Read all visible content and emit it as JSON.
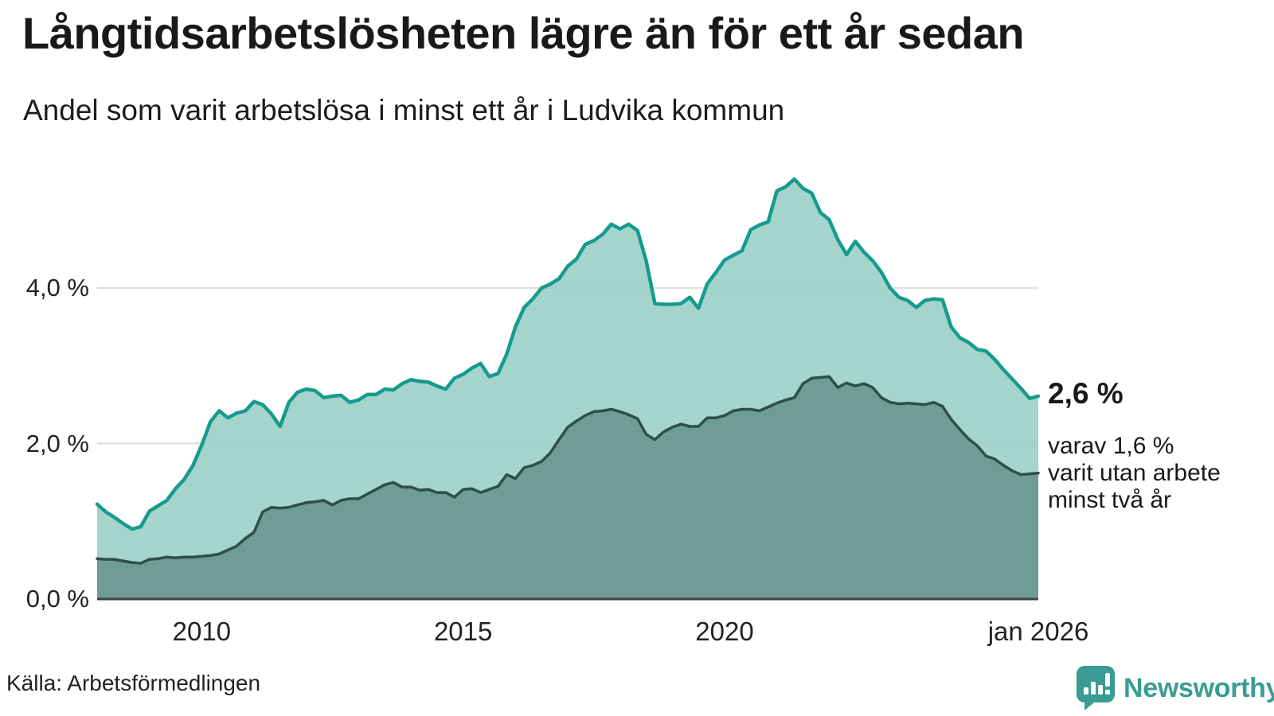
{
  "title": "Långtidsarbetslösheten lägre än för ett år sedan",
  "subtitle": "Andel som varit arbetslösa i minst ett år i Ludvika kommun",
  "annotation": {
    "value_label": "2,6 %",
    "detail_lines": [
      "varav 1,6 %",
      "varit utan arbete",
      "minst två år"
    ]
  },
  "source": {
    "text": "Källa: Arbetsförmedlingen"
  },
  "logo": {
    "text": "Newsworthy",
    "color": "#3A9C94"
  },
  "colors": {
    "series1_line": "#169B8D",
    "series1_fill": "#95CCC4",
    "series2_line": "#2E4F49",
    "series2_fill": "#6F9C95",
    "gridline": "#E0E0E0",
    "axis_line": "#3D4543",
    "text": "#191919"
  },
  "chart_data": {
    "type": "area",
    "title": "Långtidsarbetslösheten lägre än för ett år sedan",
    "subtitle": "Andel som varit arbetslösa i minst ett år i Ludvika kommun",
    "unit": "%",
    "x_start_year": 2008.0,
    "x_end_year": 2026.0,
    "point_interval_months": 2,
    "ylim": [
      0,
      5.6
    ],
    "grid_values": [
      2.0,
      4.0
    ],
    "y_ticks": [
      {
        "label": "4,0 %",
        "value": 4.0
      },
      {
        "label": "2,0 %",
        "value": 2.0
      },
      {
        "label": "0,0 %",
        "value": 0.0
      }
    ],
    "x_ticks": [
      {
        "label": "2010",
        "year": 2010.0
      },
      {
        "label": "2015",
        "year": 2015.0
      },
      {
        "label": "2020",
        "year": 2020.0
      },
      {
        "label": "jan 2026",
        "year": 2026.0
      }
    ],
    "series": [
      {
        "name": "Andel arbetslösa i minst ett år",
        "end_value_label": "2,6 %",
        "values": [
          1.22,
          1.12,
          1.05,
          0.97,
          0.9,
          0.93,
          1.13,
          1.2,
          1.27,
          1.42,
          1.54,
          1.72,
          1.98,
          2.28,
          2.42,
          2.33,
          2.39,
          2.42,
          2.54,
          2.5,
          2.38,
          2.22,
          2.53,
          2.66,
          2.7,
          2.68,
          2.59,
          2.61,
          2.62,
          2.53,
          2.56,
          2.63,
          2.63,
          2.7,
          2.69,
          2.77,
          2.82,
          2.8,
          2.79,
          2.74,
          2.7,
          2.84,
          2.89,
          2.97,
          3.03,
          2.86,
          2.9,
          3.15,
          3.5,
          3.75,
          3.86,
          4.0,
          4.05,
          4.12,
          4.28,
          4.37,
          4.56,
          4.61,
          4.69,
          4.82,
          4.76,
          4.82,
          4.74,
          4.35,
          3.8,
          3.79,
          3.79,
          3.8,
          3.88,
          3.74,
          4.05,
          4.2,
          4.36,
          4.42,
          4.48,
          4.75,
          4.81,
          4.85,
          5.25,
          5.3,
          5.4,
          5.28,
          5.22,
          4.97,
          4.88,
          4.62,
          4.43,
          4.6,
          4.46,
          4.35,
          4.2,
          4.0,
          3.88,
          3.84,
          3.75,
          3.84,
          3.86,
          3.85,
          3.5,
          3.36,
          3.3,
          3.21,
          3.19,
          3.08,
          2.95,
          2.83,
          2.71,
          2.58,
          2.61
        ]
      },
      {
        "name": "varav arbetslösa minst två år",
        "end_value_label": "1,6 %",
        "values": [
          0.52,
          0.51,
          0.51,
          0.49,
          0.47,
          0.46,
          0.51,
          0.52,
          0.54,
          0.53,
          0.54,
          0.54,
          0.55,
          0.56,
          0.58,
          0.63,
          0.68,
          0.78,
          0.86,
          1.12,
          1.18,
          1.17,
          1.18,
          1.21,
          1.24,
          1.25,
          1.27,
          1.21,
          1.27,
          1.29,
          1.29,
          1.35,
          1.41,
          1.47,
          1.5,
          1.44,
          1.44,
          1.4,
          1.41,
          1.37,
          1.37,
          1.31,
          1.41,
          1.42,
          1.37,
          1.41,
          1.45,
          1.6,
          1.55,
          1.69,
          1.72,
          1.77,
          1.88,
          2.05,
          2.21,
          2.29,
          2.36,
          2.41,
          2.42,
          2.44,
          2.41,
          2.37,
          2.32,
          2.12,
          2.05,
          2.15,
          2.21,
          2.25,
          2.22,
          2.22,
          2.33,
          2.33,
          2.36,
          2.42,
          2.44,
          2.44,
          2.42,
          2.47,
          2.52,
          2.56,
          2.59,
          2.77,
          2.84,
          2.85,
          2.86,
          2.72,
          2.78,
          2.74,
          2.77,
          2.72,
          2.59,
          2.53,
          2.51,
          2.52,
          2.51,
          2.5,
          2.53,
          2.48,
          2.31,
          2.18,
          2.06,
          1.97,
          1.84,
          1.8,
          1.72,
          1.65,
          1.6,
          1.61,
          1.62
        ]
      }
    ]
  }
}
